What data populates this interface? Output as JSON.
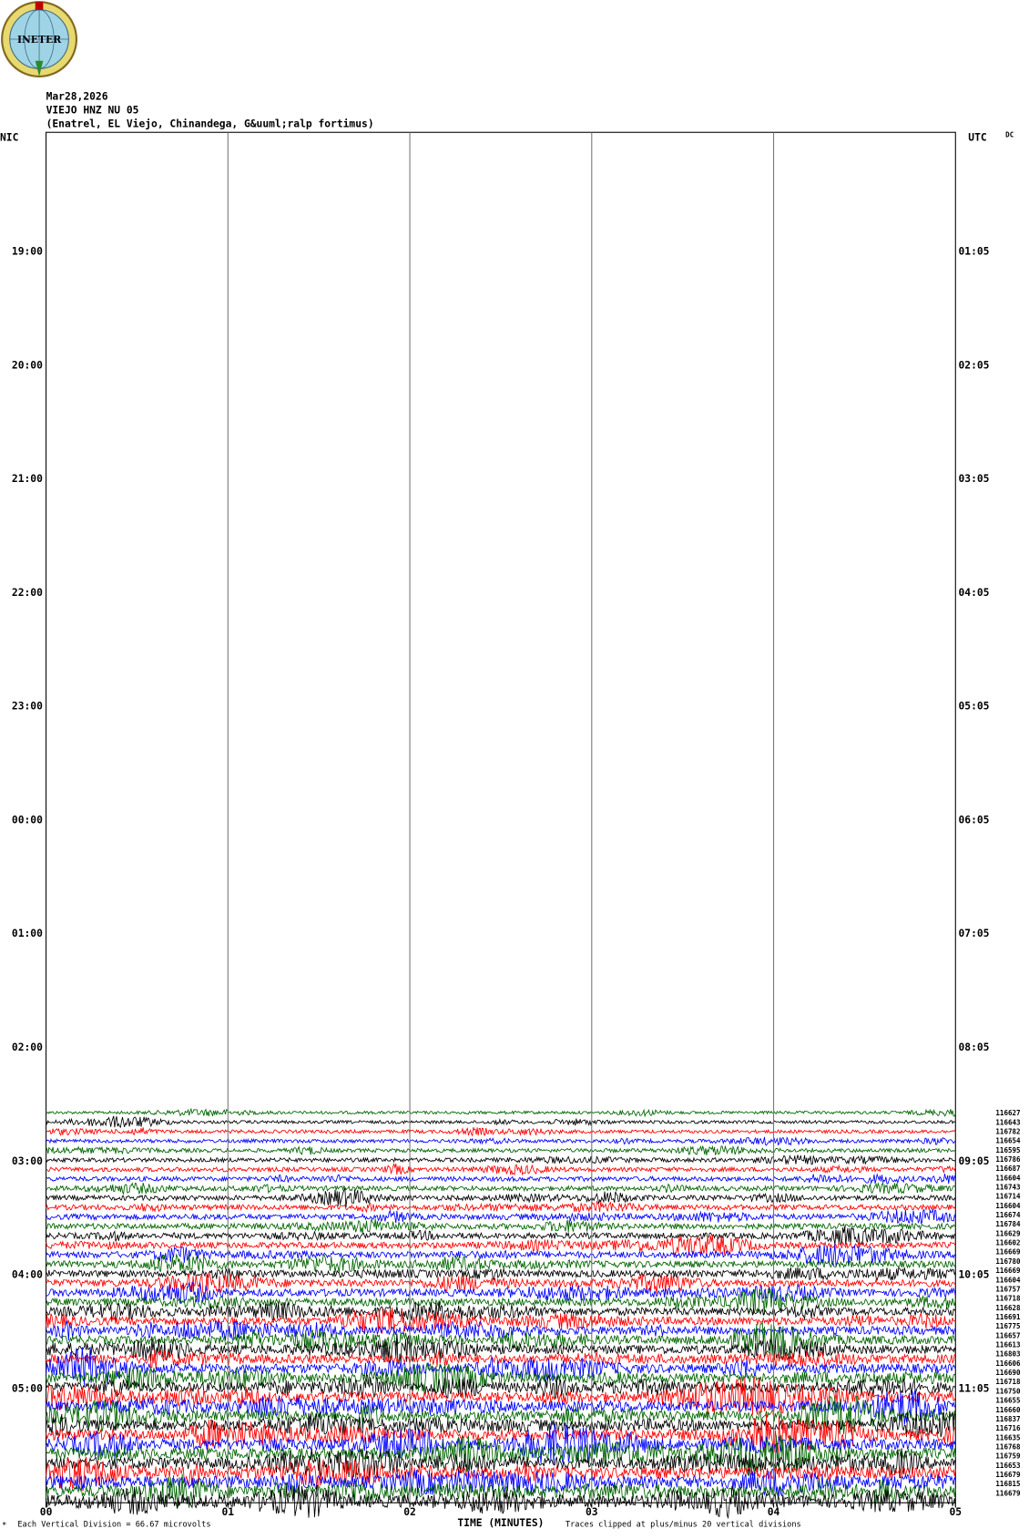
{
  "logo": {
    "text": "INETER"
  },
  "header": {
    "date": "Mar28,2026",
    "station": "VIEJO HNZ NU 05",
    "location": "(Enatrel, EL Viejo, Chinandega, G&uuml;ralp fortimus)"
  },
  "left_zone": "NIC",
  "right_zone": "UTC",
  "dc": "DC",
  "left_times": [
    "19:00",
    "20:00",
    "21:00",
    "22:00",
    "23:00",
    "00:00",
    "01:00",
    "02:00",
    "03:00",
    "04:00",
    "05:00"
  ],
  "right_times": [
    "01:05",
    "02:05",
    "03:05",
    "04:05",
    "05:05",
    "06:05",
    "07:05",
    "08:05",
    "09:05",
    "10:05",
    "11:05"
  ],
  "trace_counts": [
    "116627",
    "116643",
    "116782",
    "116654",
    "116595",
    "116786",
    "116687",
    "116604",
    "116743",
    "116714",
    "116604",
    "116674",
    "116784",
    "116629",
    "116602",
    "116669",
    "116780",
    "116669",
    "116604",
    "116757",
    "116718",
    "116628",
    "116691",
    "116775",
    "116657",
    "116613",
    "116803",
    "116606",
    "116690",
    "116718",
    "116750",
    "116655",
    "116660",
    "116837",
    "116716",
    "116635",
    "116768",
    "116759",
    "116653",
    "116679",
    "116815",
    "116679"
  ],
  "trace_colors": [
    "#006400",
    "#000000",
    "#ff0000",
    "#0000ff"
  ],
  "x_labels": [
    "00",
    "01",
    "02",
    "03",
    "04",
    "05"
  ],
  "x_title": "TIME (MINUTES)",
  "footer": {
    "division": "Each Vertical Division =   66.67 microvolts",
    "clip": "Traces clipped at plus/minus 20 vertical divisions"
  }
}
